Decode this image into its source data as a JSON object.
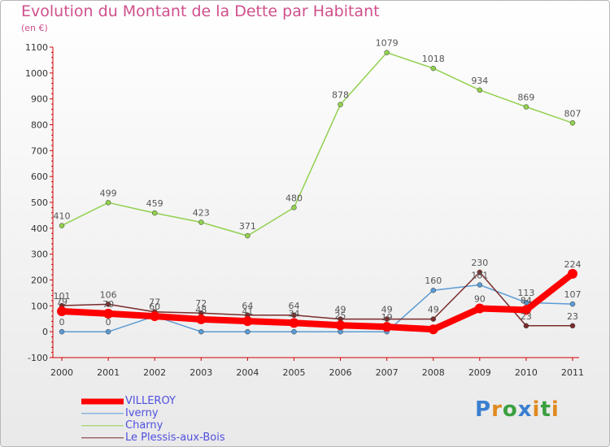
{
  "header": {
    "title": "Evolution du Montant de la Dette par Habitant",
    "subtitle": "(en €)"
  },
  "brand": {
    "text": "Proxiti",
    "colors": [
      "#3a7fd0",
      "#e08a1e",
      "#3aa040",
      "#3a7fd0",
      "#e08a1e",
      "#3aa040",
      "#e08a1e"
    ]
  },
  "chart_data": {
    "type": "line",
    "title": "Evolution du Montant de la Dette par Habitant",
    "subtitle": "(en €)",
    "x": [
      "2000",
      "2001",
      "2002",
      "2003",
      "2004",
      "2005",
      "2006",
      "2007",
      "2008",
      "2009",
      "2010",
      "2011"
    ],
    "ylim": [
      -100,
      1100
    ],
    "yticks": [
      -100,
      0,
      100,
      200,
      300,
      400,
      500,
      600,
      700,
      800,
      900,
      1000,
      1100
    ],
    "grid": false,
    "legend_position": "bottom-left",
    "series": [
      {
        "name": "VILLEROY",
        "color": "#ff0000",
        "values": [
          79,
          70,
          60,
          48,
          41,
          34,
          25,
          19,
          9,
          90,
          84,
          224
        ],
        "labels": [
          "79",
          "70",
          "60",
          "48",
          "41",
          "34",
          "25",
          "19",
          "",
          "90",
          "84",
          "224"
        ]
      },
      {
        "name": "Iverny",
        "color": "#5b9bd5",
        "values": [
          0,
          0,
          60,
          0,
          0,
          0,
          0,
          0,
          160,
          181,
          113,
          107
        ],
        "labels": [
          "0",
          "0",
          "",
          "",
          "",
          "",
          "",
          "",
          "160",
          "181",
          "113",
          "107"
        ]
      },
      {
        "name": "Charny",
        "color": "#92d050",
        "values": [
          410,
          499,
          459,
          423,
          371,
          480,
          878,
          1079,
          1018,
          934,
          869,
          807
        ],
        "labels": [
          "410",
          "499",
          "459",
          "423",
          "371",
          "480",
          "878",
          "1079",
          "1018",
          "934",
          "869",
          "807"
        ]
      },
      {
        "name": "Le Plessis-aux-Bois",
        "color": "#7b2c2c",
        "values": [
          101,
          106,
          77,
          72,
          64,
          64,
          49,
          49,
          49,
          230,
          23,
          23
        ],
        "labels": [
          "101",
          "106",
          "77",
          "72",
          "64",
          "64",
          "49",
          "49",
          "49",
          "230",
          "23",
          "23"
        ]
      }
    ]
  }
}
